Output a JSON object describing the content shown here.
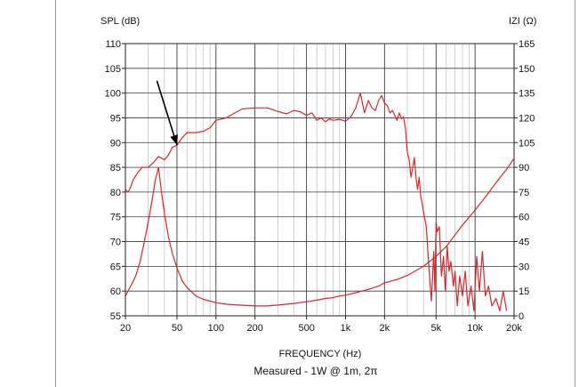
{
  "chart_data": {
    "type": "line",
    "title": "",
    "caption": "Measured - 1W @ 1m, 2π",
    "xlabel": "FREQUENCY (Hz)",
    "x_scale": "log",
    "xlim": [
      20,
      20000
    ],
    "x_ticks": [
      {
        "value": 20,
        "label": "20"
      },
      {
        "value": 50,
        "label": "50"
      },
      {
        "value": 100,
        "label": "100"
      },
      {
        "value": 200,
        "label": "200"
      },
      {
        "value": 500,
        "label": "500"
      },
      {
        "value": 1000,
        "label": "1k"
      },
      {
        "value": 2000,
        "label": "2k"
      },
      {
        "value": 5000,
        "label": "5k"
      },
      {
        "value": 10000,
        "label": "10k"
      },
      {
        "value": 20000,
        "label": "20k"
      }
    ],
    "ylabel_left": "SPL (dB)",
    "ylim_left": [
      55,
      110
    ],
    "y_ticks_left": [
      55,
      60,
      65,
      70,
      75,
      80,
      85,
      90,
      95,
      100,
      105,
      110
    ],
    "ylabel_right": "IZI (Ω)",
    "ylim_right": [
      0,
      165
    ],
    "y_ticks_right": [
      0,
      15,
      30,
      45,
      60,
      75,
      90,
      105,
      120,
      135,
      150,
      165
    ],
    "grid": true,
    "line_color": "#d9262b",
    "series": [
      {
        "axis": "left",
        "points": [
          [
            20,
            80.5
          ],
          [
            21,
            80
          ],
          [
            22,
            81
          ],
          [
            23,
            82.5
          ],
          [
            25,
            84
          ],
          [
            27,
            85
          ],
          [
            30,
            85
          ],
          [
            33,
            86
          ],
          [
            36,
            87.2
          ],
          [
            40,
            86.5
          ],
          [
            43,
            87.5
          ],
          [
            46,
            89
          ],
          [
            50,
            89.5
          ],
          [
            55,
            91
          ],
          [
            60,
            92
          ],
          [
            70,
            92
          ],
          [
            80,
            92.3
          ],
          [
            90,
            93
          ],
          [
            100,
            94.5
          ],
          [
            120,
            95
          ],
          [
            140,
            96
          ],
          [
            160,
            96.8
          ],
          [
            200,
            97
          ],
          [
            250,
            97
          ],
          [
            300,
            96.3
          ],
          [
            350,
            95.8
          ],
          [
            400,
            96.5
          ],
          [
            450,
            96.2
          ],
          [
            500,
            95.5
          ],
          [
            550,
            96
          ],
          [
            600,
            94.5
          ],
          [
            650,
            95
          ],
          [
            700,
            94.2
          ],
          [
            750,
            94.8
          ],
          [
            800,
            94.5
          ],
          [
            900,
            94.7
          ],
          [
            1000,
            94.3
          ],
          [
            1100,
            95.2
          ],
          [
            1200,
            97
          ],
          [
            1300,
            100
          ],
          [
            1400,
            96
          ],
          [
            1500,
            98.5
          ],
          [
            1600,
            97
          ],
          [
            1700,
            96.5
          ],
          [
            1800,
            98.5
          ],
          [
            1900,
            99.5
          ],
          [
            2000,
            98
          ],
          [
            2100,
            97.5
          ],
          [
            2200,
            96
          ],
          [
            2300,
            96.5
          ],
          [
            2400,
            95.5
          ],
          [
            2500,
            94.5
          ],
          [
            2600,
            96
          ],
          [
            2700,
            94.8
          ],
          [
            2800,
            95.2
          ],
          [
            2900,
            93
          ],
          [
            3000,
            88
          ],
          [
            3100,
            86.5
          ],
          [
            3200,
            83
          ],
          [
            3300,
            85
          ],
          [
            3400,
            87
          ],
          [
            3500,
            83
          ],
          [
            3600,
            80.5
          ],
          [
            3700,
            83
          ],
          [
            3800,
            79.5
          ],
          [
            4000,
            76
          ],
          [
            4200,
            73
          ],
          [
            4400,
            65
          ],
          [
            4600,
            58
          ],
          [
            4800,
            68
          ],
          [
            4900,
            60
          ],
          [
            5000,
            74
          ],
          [
            5100,
            72
          ],
          [
            5300,
            73
          ],
          [
            5500,
            63
          ],
          [
            5700,
            67
          ],
          [
            5900,
            60
          ],
          [
            6100,
            69
          ],
          [
            6300,
            64
          ],
          [
            6500,
            66
          ],
          [
            6800,
            61
          ],
          [
            7000,
            64
          ],
          [
            7300,
            57
          ],
          [
            7600,
            63
          ],
          [
            8000,
            59
          ],
          [
            8400,
            64
          ],
          [
            8800,
            57
          ],
          [
            9300,
            61
          ],
          [
            9800,
            56
          ],
          [
            10300,
            67
          ],
          [
            10800,
            60
          ],
          [
            11400,
            68
          ],
          [
            12000,
            59
          ],
          [
            12700,
            61
          ],
          [
            13500,
            57
          ],
          [
            14500,
            58.5
          ],
          [
            15500,
            56
          ],
          [
            16500,
            60
          ],
          [
            17500,
            56
          ]
        ]
      },
      {
        "axis": "right",
        "points": [
          [
            20,
            12
          ],
          [
            22,
            18
          ],
          [
            24,
            24
          ],
          [
            26,
            33
          ],
          [
            28,
            45
          ],
          [
            30,
            57
          ],
          [
            32,
            69
          ],
          [
            34,
            82
          ],
          [
            36,
            90
          ],
          [
            38,
            75
          ],
          [
            40,
            62
          ],
          [
            43,
            48
          ],
          [
            46,
            38
          ],
          [
            50,
            29
          ],
          [
            55,
            21
          ],
          [
            60,
            17
          ],
          [
            70,
            12
          ],
          [
            80,
            10
          ],
          [
            100,
            8
          ],
          [
            120,
            7
          ],
          [
            150,
            6.5
          ],
          [
            200,
            6
          ],
          [
            250,
            6
          ],
          [
            300,
            6.5
          ],
          [
            400,
            7.5
          ],
          [
            500,
            8.5
          ],
          [
            600,
            9.5
          ],
          [
            700,
            10.5
          ],
          [
            800,
            11
          ],
          [
            900,
            12
          ],
          [
            1000,
            12.5
          ],
          [
            1200,
            14
          ],
          [
            1500,
            16
          ],
          [
            1800,
            18
          ],
          [
            2000,
            20
          ],
          [
            2500,
            22
          ],
          [
            3000,
            24.5
          ],
          [
            4000,
            30
          ],
          [
            5000,
            36
          ],
          [
            6000,
            42
          ],
          [
            7000,
            49
          ],
          [
            8000,
            55
          ],
          [
            10000,
            64
          ],
          [
            12000,
            72
          ],
          [
            14000,
            79
          ],
          [
            16000,
            85
          ],
          [
            18000,
            90
          ],
          [
            19800,
            95
          ]
        ]
      }
    ],
    "annotations": [
      {
        "type": "arrow",
        "from": [
          35,
          102.5
        ],
        "to": [
          50,
          89.5
        ],
        "color": "#000000"
      }
    ]
  }
}
